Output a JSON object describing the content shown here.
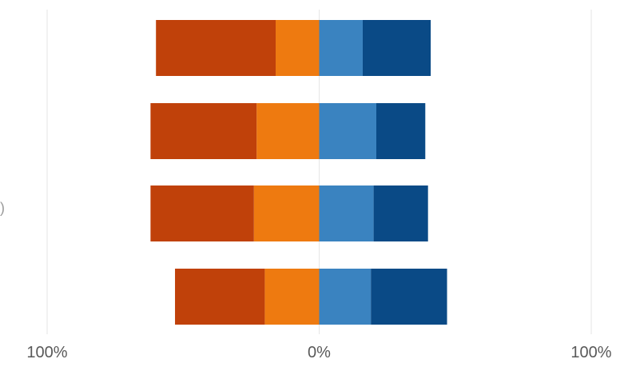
{
  "chart_data": {
    "type": "bar",
    "orientation": "horizontal",
    "stacked": "diverging",
    "xlim": [
      -100,
      100
    ],
    "x_tick_labels": [
      "100%",
      "0%",
      "100%"
    ],
    "grid": true,
    "legend": "none",
    "series": [
      {
        "side": "negative",
        "order": "outer",
        "color": "#c0410a",
        "values": [
          -44,
          -39,
          -38,
          -33
        ]
      },
      {
        "side": "negative",
        "order": "inner",
        "color": "#ee7a10",
        "values": [
          -16,
          -23,
          -24,
          -20
        ]
      },
      {
        "side": "positive",
        "order": "inner",
        "color": "#3a83c0",
        "values": [
          16,
          21,
          20,
          19
        ]
      },
      {
        "side": "positive",
        "order": "outer",
        "color": "#0a4a86",
        "values": [
          25,
          18,
          20,
          28
        ]
      }
    ]
  }
}
